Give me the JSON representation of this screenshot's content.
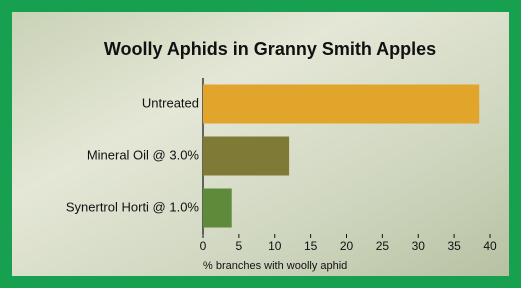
{
  "chart_data": {
    "type": "bar",
    "orientation": "horizontal",
    "title": "Woolly Aphids in Granny Smith Apples",
    "x_label": "% branches with woolly aphid",
    "categories": [
      "Untreated",
      "Mineral Oil @ 3.0%",
      "Synertrol Horti @ 1.0%"
    ],
    "values": [
      38.5,
      12,
      4
    ],
    "colors": [
      "#e0a52a",
      "#7f7a35",
      "#5e8a3a"
    ],
    "xlim": [
      0,
      40
    ],
    "xticks": [
      0,
      5,
      10,
      15,
      20,
      25,
      30,
      35,
      40
    ]
  }
}
